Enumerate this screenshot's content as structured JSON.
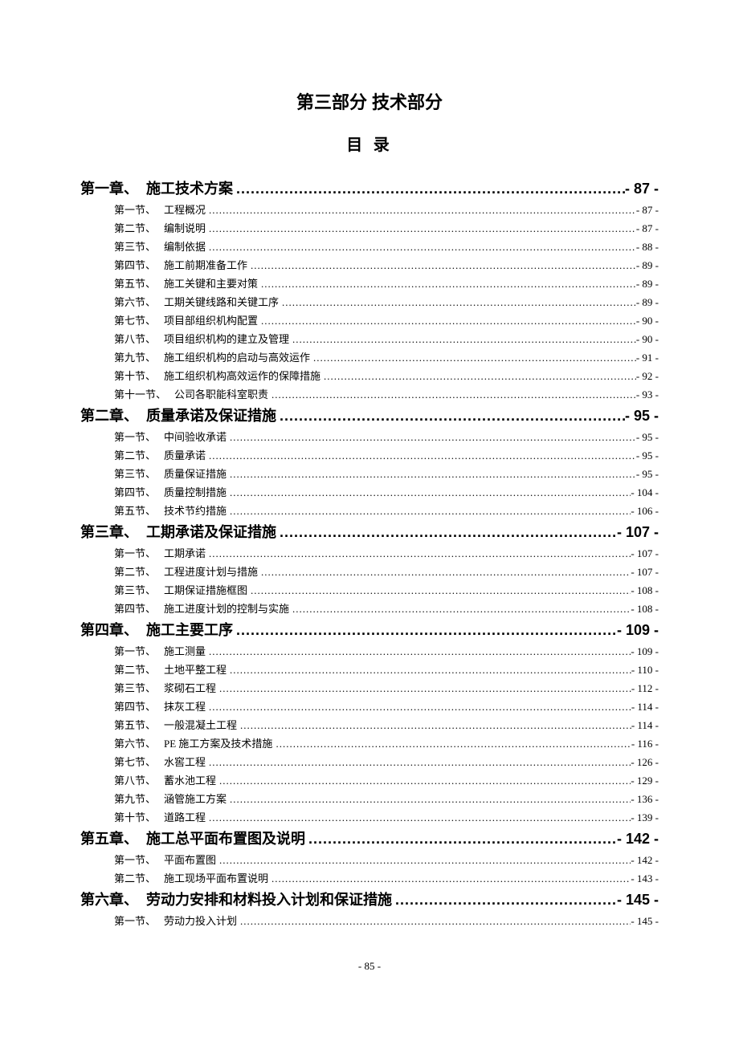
{
  "page": {
    "part_title": "第三部分 技术部分",
    "toc_title": "目 录",
    "footer": "- 85 -",
    "background_color": "#ffffff",
    "text_color": "#000000",
    "chapter_fontsize": 18,
    "section_fontsize": 13,
    "chapter_font": "SimHei",
    "section_font": "SimSun"
  },
  "chapters": [
    {
      "label": "第一章、",
      "title": "施工技术方案",
      "page": "- 87 -",
      "sections": [
        {
          "label": "第一节、",
          "title": "工程概况",
          "page": "- 87 -"
        },
        {
          "label": "第二节、",
          "title": "编制说明",
          "page": "- 87 -"
        },
        {
          "label": "第三节、",
          "title": "编制依据",
          "page": "- 88 -"
        },
        {
          "label": "第四节、",
          "title": "施工前期准备工作",
          "page": "- 89 -"
        },
        {
          "label": "第五节、",
          "title": "施工关键和主要对策",
          "page": "- 89 -"
        },
        {
          "label": "第六节、",
          "title": "工期关键线路和关键工序",
          "page": "- 89 -"
        },
        {
          "label": "第七节、",
          "title": "项目部组织机构配置",
          "page": "- 90 -"
        },
        {
          "label": "第八节、",
          "title": "项目组织机构的建立及管理",
          "page": "- 90 -"
        },
        {
          "label": "第九节、",
          "title": "施工组织机构的启动与高效运作",
          "page": "- 91 -"
        },
        {
          "label": "第十节、",
          "title": "施工组织机构高效运作的保障措施",
          "page": "- 92 -"
        },
        {
          "label": "第十一节、",
          "title": "公司各职能科室职责",
          "page": "- 93 -"
        }
      ]
    },
    {
      "label": "第二章、",
      "title": "质量承诺及保证措施",
      "page": "- 95 -",
      "sections": [
        {
          "label": "第一节、",
          "title": "中间验收承诺",
          "page": "- 95 -"
        },
        {
          "label": "第二节、",
          "title": "质量承诺",
          "page": "- 95 -"
        },
        {
          "label": "第三节、",
          "title": "质量保证措施",
          "page": "- 95 -"
        },
        {
          "label": "第四节、",
          "title": "质量控制措施",
          "page": "- 104 -"
        },
        {
          "label": "第五节、",
          "title": "技术节约措施",
          "page": "- 106 -"
        }
      ]
    },
    {
      "label": "第三章、",
      "title": "工期承诺及保证措施",
      "page": "- 107 -",
      "sections": [
        {
          "label": "第一节、",
          "title": "工期承诺",
          "page": "- 107 -"
        },
        {
          "label": "第二节、",
          "title": "工程进度计划与措施",
          "page": "- 107 -"
        },
        {
          "label": "第三节、",
          "title": "工期保证措施框图",
          "page": "- 108 -"
        },
        {
          "label": "第四节、",
          "title": "施工进度计划的控制与实施",
          "page": "- 108 -"
        }
      ]
    },
    {
      "label": "第四章、",
      "title": "施工主要工序",
      "page": "- 109 -",
      "sections": [
        {
          "label": "第一节、",
          "title": "施工测量",
          "page": "- 109 -"
        },
        {
          "label": "第二节、",
          "title": "土地平整工程",
          "page": "- 110 -"
        },
        {
          "label": "第三节、",
          "title": "浆砌石工程",
          "page": "- 112 -"
        },
        {
          "label": "第四节、",
          "title": "抹灰工程",
          "page": "- 114 -"
        },
        {
          "label": "第五节、",
          "title": "一般混凝土工程",
          "page": "- 114 -"
        },
        {
          "label": "第六节、",
          "title": "PE 施工方案及技术措施",
          "page": "- 116 -"
        },
        {
          "label": "第七节、",
          "title": "水窖工程",
          "page": "- 126 -"
        },
        {
          "label": "第八节、",
          "title": "蓄水池工程",
          "page": "- 129 -"
        },
        {
          "label": "第九节、",
          "title": "涵管施工方案",
          "page": "- 136 -"
        },
        {
          "label": "第十节、",
          "title": "道路工程",
          "page": "- 139 -"
        }
      ]
    },
    {
      "label": "第五章、",
      "title": "施工总平面布置图及说明",
      "page": "- 142 -",
      "sections": [
        {
          "label": "第一节、",
          "title": "平面布置图",
          "page": "- 142 -"
        },
        {
          "label": "第二节、",
          "title": "施工现场平面布置说明",
          "page": "- 143 -"
        }
      ]
    },
    {
      "label": "第六章、",
      "title": "劳动力安排和材料投入计划和保证措施",
      "page": "- 145 -",
      "sections": [
        {
          "label": "第一节、",
          "title": "劳动力投入计划",
          "page": "- 145 -"
        }
      ]
    }
  ]
}
